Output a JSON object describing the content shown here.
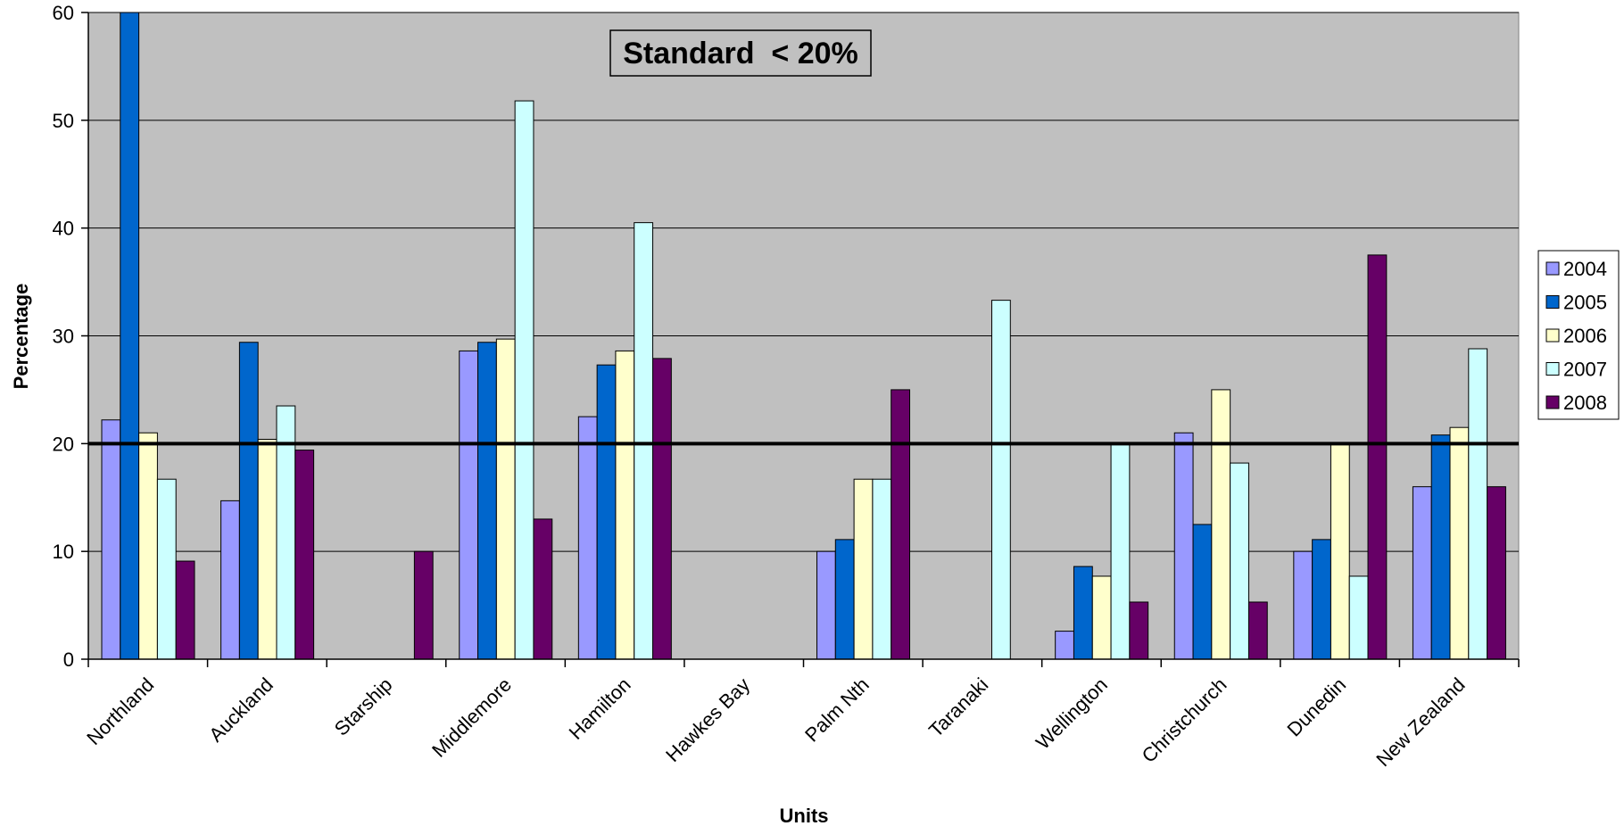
{
  "chart_data": {
    "type": "bar",
    "categories": [
      "Northland",
      "Auckland",
      "Starship",
      "Middlemore",
      "Hamilton",
      "Hawkes Bay",
      "Palm Nth",
      "Taranaki",
      "Wellington",
      "Christchurch",
      "Dunedin",
      "New Zealand"
    ],
    "series": [
      {
        "name": "2004",
        "color": "#9999ff",
        "values": [
          22.2,
          14.7,
          null,
          28.6,
          22.5,
          null,
          10.0,
          null,
          2.6,
          21.0,
          10.0,
          16.0
        ]
      },
      {
        "name": "2005",
        "color": "#0066cc",
        "values": [
          60.0,
          29.4,
          null,
          29.4,
          27.3,
          null,
          11.1,
          null,
          8.6,
          12.5,
          11.1,
          20.8
        ]
      },
      {
        "name": "2006",
        "color": "#ffffcc",
        "values": [
          21.0,
          20.4,
          null,
          29.7,
          28.6,
          null,
          16.7,
          null,
          7.7,
          25.0,
          20.0,
          21.5
        ]
      },
      {
        "name": "2007",
        "color": "#ccffff",
        "values": [
          16.7,
          23.5,
          null,
          51.8,
          40.5,
          null,
          16.7,
          33.3,
          20.0,
          18.2,
          7.7,
          28.8
        ]
      },
      {
        "name": "2008",
        "color": "#660066",
        "values": [
          9.1,
          19.4,
          10.0,
          13.0,
          27.9,
          null,
          25.0,
          null,
          5.3,
          5.3,
          37.5,
          16.0
        ]
      }
    ],
    "title": "",
    "xlabel": "Units",
    "ylabel": "Percentage",
    "ylim": [
      0,
      60
    ],
    "yticks": [
      "0",
      "10",
      "20",
      "30",
      "40",
      "50",
      "60"
    ],
    "reference_line": {
      "value": 20,
      "label": "Standard  < 20%"
    },
    "grid": true,
    "legend_position": "right",
    "plot_background": "#c0c0c0"
  }
}
